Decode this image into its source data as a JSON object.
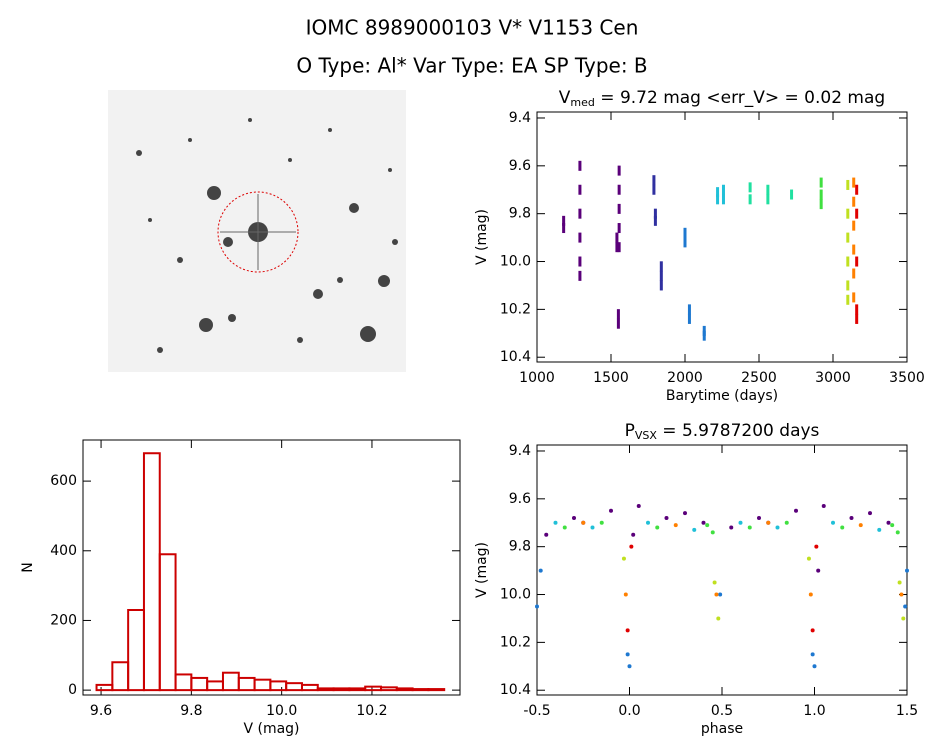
{
  "header": {
    "title": "IOMC 8989000103    V* V1153 Cen",
    "subtitle": "O Type: Al*  Var Type: EA  SP Type: B"
  },
  "chart_data": [
    {
      "type": "scatter",
      "title": [
        "V",
        "med",
        " = 9.72 mag <err_V> = 0.02 mag"
      ],
      "xlabel": "Barytime (days)",
      "ylabel": "V (mag)",
      "xlim": [
        1000,
        3500
      ],
      "xticks": [
        1000,
        1500,
        2000,
        2500,
        3000,
        3500
      ],
      "ylim": [
        10.42,
        9.375
      ],
      "yticks": [
        9.4,
        9.6,
        9.8,
        {
          "value": 10,
          "label": "10.0"
        },
        10.2,
        10.4
      ],
      "series": [
        {
          "color": "#5a007a",
          "x": [
            1180,
            1180,
            1290,
            1290,
            1290,
            1290,
            1290,
            1290,
            1540,
            1540,
            1555,
            1555,
            1555,
            1555,
            1555,
            1550,
            1550
          ],
          "values": [
            9.83,
            9.86,
            9.6,
            9.7,
            9.8,
            9.9,
            10.0,
            10.06,
            9.9,
            9.94,
            9.62,
            9.7,
            9.78,
            9.86,
            9.94,
            10.22,
            10.26
          ]
        },
        {
          "color": "#3030a0",
          "x": [
            1790,
            1790,
            1800,
            1800,
            1840,
            1840,
            1840
          ],
          "values": [
            9.66,
            9.7,
            9.8,
            9.83,
            10.02,
            10.06,
            10.1
          ]
        },
        {
          "color": "#1e78d0",
          "x": [
            2000,
            2000,
            2030,
            2030,
            2130,
            2130
          ],
          "values": [
            9.88,
            9.92,
            10.2,
            10.24,
            10.29,
            10.31
          ]
        },
        {
          "color": "#20c0d8",
          "x": [
            2220,
            2220,
            2260,
            2260
          ],
          "values": [
            9.71,
            9.74,
            9.7,
            9.74
          ]
        },
        {
          "color": "#20e0a0",
          "x": [
            2440,
            2440,
            2560,
            2560,
            2720
          ],
          "values": [
            9.69,
            9.74,
            9.7,
            9.74,
            9.72
          ]
        },
        {
          "color": "#40e040",
          "x": [
            2920,
            2920,
            2920
          ],
          "values": [
            9.67,
            9.72,
            9.76
          ]
        },
        {
          "color": "#c0e020",
          "x": [
            3100,
            3100,
            3100,
            3100,
            3100,
            3100
          ],
          "values": [
            9.68,
            9.8,
            9.9,
            10.0,
            10.1,
            10.16
          ]
        },
        {
          "color": "#ff8000",
          "x": [
            3140,
            3140,
            3140,
            3140,
            3140,
            3140
          ],
          "values": [
            9.67,
            9.75,
            9.85,
            9.95,
            10.05,
            10.15
          ]
        },
        {
          "color": "#e00000",
          "x": [
            3160,
            3160,
            3160,
            3160,
            3160
          ],
          "values": [
            9.7,
            9.8,
            10.0,
            10.2,
            10.24
          ]
        }
      ]
    },
    {
      "type": "histogram",
      "xlabel": "V (mag)",
      "ylabel": "N",
      "color": "#cc0000",
      "xlim": [
        9.56,
        10.395
      ],
      "xticks": [
        9.6,
        9.8,
        {
          "value": 10,
          "label": "10.0"
        },
        10.2
      ],
      "ylim": [
        -14,
        718
      ],
      "yticks": [
        0,
        200,
        400,
        600
      ],
      "bins": [
        9.59,
        9.625,
        9.66,
        9.695,
        9.73,
        9.765,
        9.8,
        9.835,
        9.87,
        9.905,
        9.94,
        9.975,
        10.01,
        10.045,
        10.08,
        10.115,
        10.15,
        10.185,
        10.22,
        10.255,
        10.29,
        10.325,
        10.36
      ],
      "values": [
        15,
        80,
        230,
        680,
        390,
        45,
        35,
        25,
        50,
        35,
        30,
        25,
        20,
        15,
        5,
        5,
        5,
        10,
        8,
        5,
        3,
        3
      ]
    },
    {
      "type": "scatter",
      "title": [
        "P",
        "VSX",
        " = 5.9787200 days"
      ],
      "xlabel": "phase",
      "ylabel": "V (mag)",
      "xlim": [
        -0.5,
        1.5
      ],
      "xticks": [
        -0.5,
        {
          "value": 0,
          "label": "0.0"
        },
        0.5,
        {
          "value": 1,
          "label": "1.0"
        },
        1.5
      ],
      "ylim": [
        10.42,
        9.375
      ],
      "yticks": [
        9.4,
        9.6,
        9.8,
        {
          "value": 10,
          "label": "10.0"
        },
        10.2,
        10.4
      ],
      "series": [
        {
          "color": "#5a007a",
          "x": [
            -0.45,
            -0.3,
            -0.25,
            -0.1,
            0.02,
            0.05,
            0.2,
            0.3,
            0.4,
            0.55,
            0.7,
            0.75,
            0.9,
            1.02,
            1.05,
            1.2,
            1.3,
            1.4
          ],
          "values": [
            9.75,
            9.68,
            9.7,
            9.65,
            9.75,
            9.63,
            9.68,
            9.66,
            9.7,
            9.72,
            9.68,
            9.7,
            9.65,
            9.9,
            9.63,
            9.68,
            9.66,
            9.7
          ]
        },
        {
          "color": "#1e78d0",
          "x": [
            -0.5,
            -0.48,
            -0.01,
            0.0,
            0.49,
            0.99,
            1.0,
            1.49,
            1.5
          ],
          "values": [
            10.05,
            9.9,
            10.25,
            10.3,
            10.0,
            10.25,
            10.3,
            10.05,
            9.9
          ]
        },
        {
          "color": "#20c0d8",
          "x": [
            -0.4,
            -0.2,
            0.1,
            0.35,
            0.6,
            0.8,
            1.1,
            1.35
          ],
          "values": [
            9.7,
            9.72,
            9.7,
            9.73,
            9.7,
            9.72,
            9.7,
            9.73
          ]
        },
        {
          "color": "#40e040",
          "x": [
            -0.35,
            -0.15,
            0.15,
            0.42,
            0.45,
            0.65,
            0.85,
            1.15,
            1.42,
            1.45
          ],
          "values": [
            9.72,
            9.7,
            9.72,
            9.71,
            9.74,
            9.72,
            9.7,
            9.72,
            9.71,
            9.74
          ]
        },
        {
          "color": "#c0e020",
          "x": [
            -0.03,
            0.46,
            0.48,
            0.97,
            1.46,
            1.48
          ],
          "values": [
            9.85,
            9.95,
            10.1,
            9.85,
            9.95,
            10.1
          ]
        },
        {
          "color": "#ff8000",
          "x": [
            -0.02,
            -0.25,
            0.25,
            0.47,
            0.75,
            0.98,
            1.25,
            1.47
          ],
          "values": [
            10.0,
            9.7,
            9.71,
            10.0,
            9.7,
            10.0,
            9.71,
            10.0
          ]
        },
        {
          "color": "#e00000",
          "x": [
            -0.01,
            0.01,
            0.99,
            1.01
          ],
          "values": [
            10.15,
            9.8,
            10.15,
            9.8
          ]
        }
      ]
    }
  ]
}
